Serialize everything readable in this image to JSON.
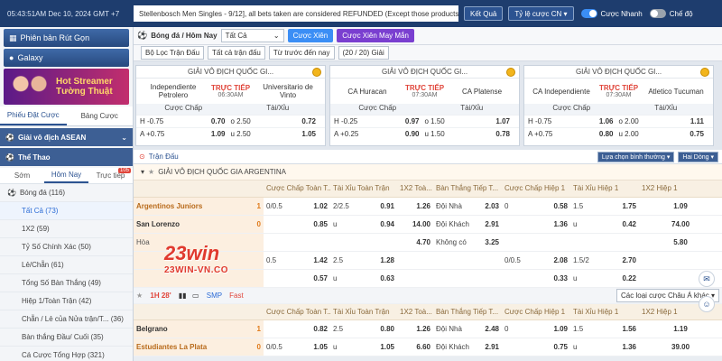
{
  "topbar": {
    "clock": "05:43:51AM Dec 10, 2024 GMT +7",
    "ticker": "Stellenbosch Men Singles - 9/12], all bets taken are considered REFUNDED (Except those products",
    "deposit_label": "Kết Quả",
    "odds_label": "Tỷ lệ cược CN ▾",
    "quick_bet_label": "Cược Nhanh",
    "mode_label": "Chế độ"
  },
  "sidebar": {
    "banner1": "Phiên bản Rút Gọn",
    "banner2": "Galaxy",
    "promo_line1": "Hot Streamer",
    "promo_line2": "Tường Thuật",
    "tab_bet_slip": "Phiếu Đặt Cược",
    "tab_bet_list": "Bảng Cược",
    "section_asean": "Giải vô địch ASEAN",
    "section_sports": "Thể Thao",
    "sub_early": "Sớm",
    "sub_today": "Hôm Nay",
    "sub_live": "Trực tiếp",
    "live_badge": "105",
    "items": [
      {
        "label": "Bóng đá  (116)"
      },
      {
        "label": "Tất Cả  (73)"
      },
      {
        "label": "1X2  (59)"
      },
      {
        "label": "Tỷ Số Chính Xác  (50)"
      },
      {
        "label": "Lẻ/Chẵn  (61)"
      },
      {
        "label": "Tổng Số Bàn Thắng  (49)"
      },
      {
        "label": "Hiệp 1/Toàn Trận  (42)"
      },
      {
        "label": "Chẵn / Lẻ của Nửa trận/T...  (36)"
      },
      {
        "label": "Bàn thắng Đầu/ Cuối  (35)"
      },
      {
        "label": "Cá Cược Tổng Hợp  (321)"
      }
    ]
  },
  "filters": {
    "sport_title": "Bóng đá / Hôm Nay",
    "all_select": "Tất Cả",
    "parlay_btn": "Cược Xiên",
    "lucky_parlay_btn": "Cược Xiên May Mắn",
    "league_filter": "Bộ Lọc Trận Đấu",
    "all_matches": "Tất cả trận đấu",
    "sort_before": "Từ trước đến nay",
    "count": "(20 / 20) Giải"
  },
  "cards": [
    {
      "league": "GIẢI VÔ ĐỊCH QUỐC GI...",
      "home": "Independiente Petrolero",
      "away": "Universitario de Vinto",
      "status": "TRỰC TIẾP",
      "time": "06:30AM",
      "rows": [
        {
          "h": "H  -0.75",
          "ho": "0.70",
          "t": "o  2.50",
          "to": "0.72"
        },
        {
          "h": "A  +0.75",
          "ho": "1.09",
          "t": "u  2.50",
          "to": "1.05"
        }
      ]
    },
    {
      "league": "GIẢI VÔ ĐỊCH QUỐC GI...",
      "home": "CA Huracan",
      "away": "CA Platense",
      "status": "TRỰC TIẾP",
      "time": "07:30AM",
      "rows": [
        {
          "h": "H  -0.25",
          "ho": "0.97",
          "t": "o  1.50",
          "to": "1.07"
        },
        {
          "h": "A  +0.25",
          "ho": "0.90",
          "t": "u  1.50",
          "to": "0.78"
        }
      ]
    },
    {
      "league": "GIẢI VÔ ĐỊCH QUỐC GI...",
      "home": "CA Independiente",
      "away": "Atletico Tucuman",
      "status": "TRỰC TIẾP",
      "time": "07:30AM",
      "rows": [
        {
          "h": "H  -0.75",
          "ho": "1.06",
          "t": "o  2.00",
          "to": "1.11"
        },
        {
          "h": "A  +0.75",
          "ho": "0.80",
          "t": "u  2.00",
          "to": "0.75"
        }
      ]
    }
  ],
  "card_labels": {
    "handicap": "Cược Chấp",
    "overunder": "Tài/Xỉu"
  },
  "section": {
    "title": "Trận Đấu",
    "sort": "Lựa chọn bình thường ▾",
    "order": "Hai Dòng ▾",
    "league": "GIẢI VÔ ĐỊCH QUỐC GIA ARGENTINA",
    "alt_handicap": "Các loại cược Châu Á khác ▾",
    "ctrl_time": "1H  28'",
    "ctrl_smp": "SMP",
    "ctrl_fast": "Fast"
  },
  "columns": [
    "Cược Chấp Toàn T...",
    "Tài Xỉu Toàn Trận",
    "1X2 Toà...",
    "Bàn Thắng Tiếp T...",
    "Cược Chấp Hiệp 1",
    "Tài Xỉu Hiệp 1",
    "1X2 Hiệp 1"
  ],
  "match1": {
    "home": "Argentinos Juniors",
    "away": "San Lorenzo",
    "draw": "Hòa",
    "score_h": "1",
    "score_a": "0",
    "r1": [
      "0/0.5",
      "1.02",
      "2/2.5",
      "0.91",
      "1.26",
      "Đội Nhà",
      "2.03",
      "0",
      "0.58",
      "1.5",
      "1.75",
      "1.09"
    ],
    "r2": [
      "",
      "0.85",
      "u",
      "0.94",
      "14.00",
      "Đội Khách",
      "2.91",
      "",
      "1.36",
      "u",
      "0.42",
      "74.00"
    ],
    "r3": [
      "",
      "",
      "",
      "",
      "4.70",
      "Không có",
      "3.25",
      "",
      "",
      "",
      "",
      "5.80"
    ],
    "r4": [
      "0.5",
      "1.42",
      "2.5",
      "1.28",
      "",
      "",
      "",
      "0/0.5",
      "2.08",
      "1.5/2",
      "2.70",
      ""
    ],
    "r5": [
      "",
      "0.57",
      "u",
      "0.63",
      "",
      "",
      "",
      "",
      "0.33",
      "u",
      "0.22",
      ""
    ]
  },
  "match2": {
    "home": "Belgrano",
    "away": "Estudiantes La Plata",
    "score_h": "1",
    "score_a": "0",
    "r1": [
      "",
      "0.82",
      "2.5",
      "0.80",
      "1.26",
      "Đội Nhà",
      "2.48",
      "0",
      "1.09",
      "1.5",
      "1.56",
      "1.19"
    ],
    "r2": [
      "0/0.5",
      "1.05",
      "u",
      "1.05",
      "6.60",
      "Đội Khách",
      "2.91",
      "",
      "0.75",
      "u",
      "1.36",
      "39.00"
    ]
  },
  "watermark": {
    "brand": "23win",
    "site": "23WIN-VN.CO"
  }
}
